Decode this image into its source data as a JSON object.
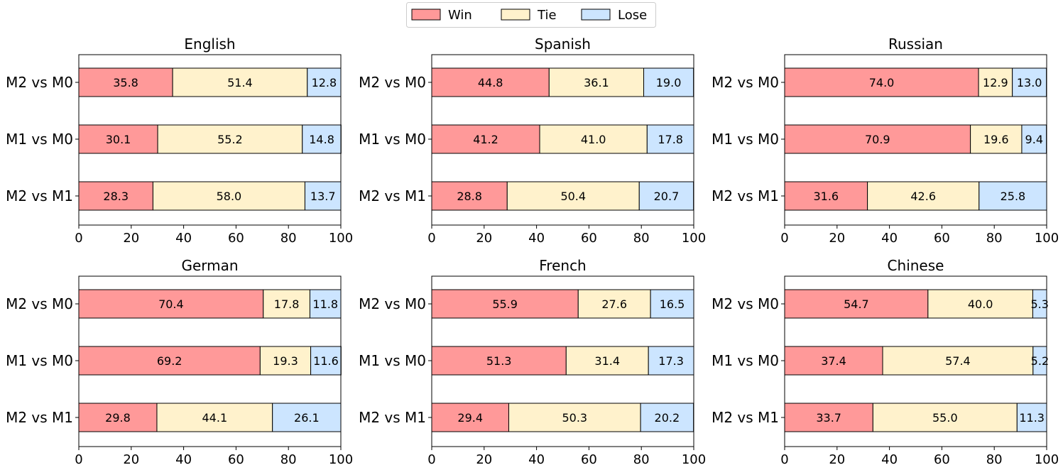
{
  "legend": {
    "placement": "top-center",
    "items": [
      {
        "label": "Win",
        "color": "#ff9999"
      },
      {
        "label": "Tie",
        "color": "#fff2cc"
      },
      {
        "label": "Lose",
        "color": "#cce5ff"
      }
    ]
  },
  "chart_data": [
    {
      "type": "bar",
      "orientation": "horizontal",
      "stacked": true,
      "title": "English",
      "categories": [
        "M2 vs M0",
        "M1 vs M0",
        "M2 vs M1"
      ],
      "xlim": [
        0,
        100
      ],
      "xticks": [
        0,
        20,
        40,
        60,
        80,
        100
      ],
      "series": [
        {
          "name": "Win",
          "values": [
            35.8,
            30.1,
            28.3
          ]
        },
        {
          "name": "Tie",
          "values": [
            51.4,
            55.2,
            58.0
          ]
        },
        {
          "name": "Lose",
          "values": [
            12.8,
            14.8,
            13.7
          ]
        }
      ]
    },
    {
      "type": "bar",
      "orientation": "horizontal",
      "stacked": true,
      "title": "Spanish",
      "categories": [
        "M2 vs M0",
        "M1 vs M0",
        "M2 vs M1"
      ],
      "xlim": [
        0,
        100
      ],
      "xticks": [
        0,
        20,
        40,
        60,
        80,
        100
      ],
      "series": [
        {
          "name": "Win",
          "values": [
            44.8,
            41.2,
            28.8
          ]
        },
        {
          "name": "Tie",
          "values": [
            36.1,
            41.0,
            50.4
          ]
        },
        {
          "name": "Lose",
          "values": [
            19.0,
            17.8,
            20.7
          ]
        }
      ]
    },
    {
      "type": "bar",
      "orientation": "horizontal",
      "stacked": true,
      "title": "Russian",
      "categories": [
        "M2 vs M0",
        "M1 vs M0",
        "M2 vs M1"
      ],
      "xlim": [
        0,
        100
      ],
      "xticks": [
        0,
        20,
        40,
        60,
        80,
        100
      ],
      "series": [
        {
          "name": "Win",
          "values": [
            74.0,
            70.9,
            31.6
          ]
        },
        {
          "name": "Tie",
          "values": [
            12.9,
            19.6,
            42.6
          ]
        },
        {
          "name": "Lose",
          "values": [
            13.0,
            9.4,
            25.8
          ]
        }
      ]
    },
    {
      "type": "bar",
      "orientation": "horizontal",
      "stacked": true,
      "title": "German",
      "categories": [
        "M2 vs M0",
        "M1 vs M0",
        "M2 vs M1"
      ],
      "xlim": [
        0,
        100
      ],
      "xticks": [
        0,
        20,
        40,
        60,
        80,
        100
      ],
      "series": [
        {
          "name": "Win",
          "values": [
            70.4,
            69.2,
            29.8
          ]
        },
        {
          "name": "Tie",
          "values": [
            17.8,
            19.3,
            44.1
          ]
        },
        {
          "name": "Lose",
          "values": [
            11.8,
            11.6,
            26.1
          ]
        }
      ]
    },
    {
      "type": "bar",
      "orientation": "horizontal",
      "stacked": true,
      "title": "French",
      "categories": [
        "M2 vs M0",
        "M1 vs M0",
        "M2 vs M1"
      ],
      "xlim": [
        0,
        100
      ],
      "xticks": [
        0,
        20,
        40,
        60,
        80,
        100
      ],
      "series": [
        {
          "name": "Win",
          "values": [
            55.9,
            51.3,
            29.4
          ]
        },
        {
          "name": "Tie",
          "values": [
            27.6,
            31.4,
            50.3
          ]
        },
        {
          "name": "Lose",
          "values": [
            16.5,
            17.3,
            20.2
          ]
        }
      ]
    },
    {
      "type": "bar",
      "orientation": "horizontal",
      "stacked": true,
      "title": "Chinese",
      "categories": [
        "M2 vs M0",
        "M1 vs M0",
        "M2 vs M1"
      ],
      "xlim": [
        0,
        100
      ],
      "xticks": [
        0,
        20,
        40,
        60,
        80,
        100
      ],
      "series": [
        {
          "name": "Win",
          "values": [
            54.7,
            37.4,
            33.7
          ]
        },
        {
          "name": "Tie",
          "values": [
            40.0,
            57.4,
            55.0
          ]
        },
        {
          "name": "Lose",
          "values": [
            5.3,
            5.2,
            11.3
          ]
        }
      ]
    }
  ]
}
